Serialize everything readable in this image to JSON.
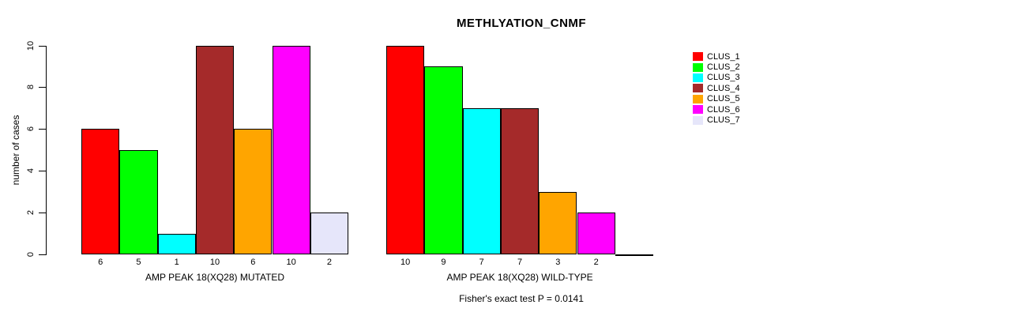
{
  "chart_data": {
    "type": "bar",
    "title": "METHLYATION_CNMF",
    "ylabel": "number of cases",
    "ylim": [
      0,
      10
    ],
    "yticks": [
      0,
      2,
      4,
      6,
      8,
      10
    ],
    "grid": false,
    "legend_position": "right",
    "categories": [
      "CLUS_1",
      "CLUS_2",
      "CLUS_3",
      "CLUS_4",
      "CLUS_5",
      "CLUS_6",
      "CLUS_7"
    ],
    "colors": [
      "#FF0000",
      "#00FF00",
      "#00FFFF",
      "#A52A2A",
      "#FFA500",
      "#FF00FF",
      "#E6E6FA"
    ],
    "groups": [
      {
        "xlabel": "AMP PEAK 18(XQ28) MUTATED",
        "values": [
          6,
          5,
          1,
          10,
          6,
          10,
          2
        ],
        "bar_labels": [
          "6",
          "5",
          "1",
          "10",
          "6",
          "10",
          "2"
        ]
      },
      {
        "xlabel": "AMP PEAK 18(XQ28) WILD-TYPE",
        "values": [
          10,
          9,
          7,
          7,
          3,
          2,
          0
        ],
        "bar_labels": [
          "10",
          "9",
          "7",
          "7",
          "3",
          "2",
          ""
        ]
      }
    ],
    "annotation": "Fisher's exact test P = 0.0141"
  }
}
